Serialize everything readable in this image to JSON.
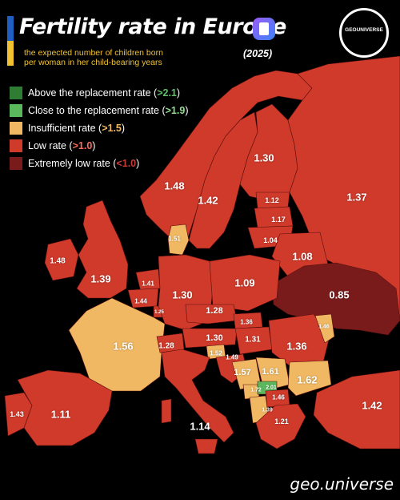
{
  "title": "Fertility rate in Europe",
  "subtitle_line1": "the expected number of children born",
  "subtitle_line2": "per woman in her child-bearing years",
  "year": "(2025)",
  "logo_text": "GEOUNIVERSE",
  "footer": "geo.universe",
  "colors": {
    "above": "#2e7d32",
    "close": "#5cb85c",
    "insufficient": "#f0b862",
    "low": "#cf3a2b",
    "extremely_low": "#7a1b1b",
    "background": "#000000"
  },
  "legend": [
    {
      "label": "Above the replacement rate (",
      "threshold": ">2.1",
      "tail": ")",
      "color": "#2e7d32"
    },
    {
      "label": "Close to the replacement rate (",
      "threshold": ">1.9",
      "tail": ")",
      "color": "#5cb85c"
    },
    {
      "label": "Insufficient rate (",
      "threshold": ">1.5",
      "tail": ")",
      "color": "#f0b862"
    },
    {
      "label": "Low rate (",
      "threshold": ">1.0",
      "tail": ")",
      "color": "#cf3a2b"
    },
    {
      "label": "Extremely low rate (",
      "threshold": "<1.0",
      "tail": ")",
      "color": "#7a1b1b"
    }
  ],
  "values": {
    "finland": "1.30",
    "russia": "1.37",
    "sweden": "1.42",
    "norway": "1.48",
    "estonia": "1.12",
    "latvia": "1.17",
    "lithuania": "1.04",
    "belarus": "1.08",
    "denmark": "1.51",
    "ireland": "1.48",
    "uk": "1.39",
    "netherlands": "1.41",
    "belgium": "1.44",
    "luxembourg": "1.25",
    "germany": "1.30",
    "poland": "1.09",
    "ukraine": "0.85",
    "czechia": "1.28",
    "slovakia": "1.36",
    "france": "1.56",
    "switzerland": "1.28",
    "austria": "1.30",
    "hungary": "1.31",
    "moldova": "1.46",
    "romania": "1.36",
    "slovenia": "1.52",
    "croatia": "1.49",
    "bosnia": "1.57",
    "serbia": "1.61",
    "bulgaria": "1.62",
    "montenegro": "1.72",
    "kosovo": "2.01",
    "north_macedonia": "1.46",
    "albania": "1.39",
    "greece": "1.21",
    "turkey": "1.42",
    "portugal": "1.43",
    "spain": "1.11",
    "italy": "1.14"
  }
}
